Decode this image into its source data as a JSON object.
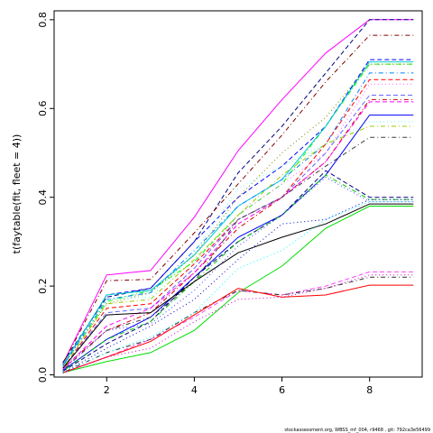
{
  "chart_data": {
    "type": "line",
    "title": "",
    "xlabel": "",
    "ylabel": "t(faytable(fit, fleet = 4))",
    "xlim": [
      0.8,
      9.2
    ],
    "ylim": [
      -0.005,
      0.82
    ],
    "x_ticks": [
      2,
      4,
      6,
      8
    ],
    "y_ticks": [
      0.0,
      0.2,
      0.4,
      0.6,
      0.8
    ],
    "y_tick_labels": [
      "0.0",
      "0.2",
      "0.4",
      "0.6",
      "0.8"
    ],
    "grid": false,
    "legend": "none",
    "x": [
      1,
      2,
      3,
      4,
      5,
      6,
      7,
      8,
      9
    ],
    "series": [
      {
        "color": "#ff00ff",
        "dash": "solid",
        "values": [
          0.025,
          0.225,
          0.235,
          0.355,
          0.505,
          0.62,
          0.725,
          0.8,
          0.8
        ]
      },
      {
        "color": "#000080",
        "dash": "dashed",
        "values": [
          0.028,
          0.175,
          0.195,
          0.3,
          0.455,
          0.56,
          0.68,
          0.8,
          0.8
        ]
      },
      {
        "color": "#800000",
        "dash": "dotdash",
        "values": [
          0.025,
          0.212,
          0.215,
          0.32,
          0.43,
          0.54,
          0.66,
          0.765,
          0.765
        ]
      },
      {
        "color": "#0000ff",
        "dash": "dashed",
        "values": [
          0.02,
          0.18,
          0.195,
          0.3,
          0.4,
          0.47,
          0.56,
          0.71,
          0.71
        ]
      },
      {
        "color": "#00ff00",
        "dash": "dotdash",
        "values": [
          0.02,
          0.165,
          0.19,
          0.255,
          0.36,
          0.43,
          0.56,
          0.7,
          0.7
        ]
      },
      {
        "color": "#00cccc",
        "dash": "solid",
        "values": [
          0.022,
          0.18,
          0.19,
          0.27,
          0.38,
          0.44,
          0.56,
          0.705,
          0.705
        ]
      },
      {
        "color": "#808000",
        "dash": "dotted",
        "values": [
          0.02,
          0.16,
          0.185,
          0.27,
          0.4,
          0.5,
          0.58,
          0.7,
          0.7
        ]
      },
      {
        "color": "#0080ff",
        "dash": "dotdash",
        "values": [
          0.02,
          0.17,
          0.185,
          0.28,
          0.38,
          0.44,
          0.52,
          0.68,
          0.68
        ]
      },
      {
        "color": "#ff0000",
        "dash": "dashed",
        "values": [
          0.015,
          0.15,
          0.16,
          0.25,
          0.35,
          0.4,
          0.52,
          0.665,
          0.665
        ]
      },
      {
        "color": "#ff66ff",
        "dash": "dotted",
        "values": [
          0.018,
          0.1,
          0.14,
          0.24,
          0.36,
          0.43,
          0.5,
          0.655,
          0.655
        ]
      },
      {
        "color": "#6666ff",
        "dash": "dashed",
        "values": [
          0.015,
          0.14,
          0.15,
          0.24,
          0.35,
          0.4,
          0.5,
          0.63,
          0.63
        ]
      },
      {
        "color": "#cc0000",
        "dash": "dotdash",
        "values": [
          0.015,
          0.1,
          0.14,
          0.23,
          0.33,
          0.4,
          0.48,
          0.62,
          0.62
        ]
      },
      {
        "color": "#ff00ff",
        "dash": "dashed",
        "values": [
          0.012,
          0.11,
          0.15,
          0.23,
          0.34,
          0.4,
          0.48,
          0.615,
          0.615
        ]
      },
      {
        "color": "#0000ff",
        "dash": "solid",
        "values": [
          0.01,
          0.08,
          0.13,
          0.22,
          0.31,
          0.36,
          0.45,
          0.585,
          0.585
        ]
      },
      {
        "color": "#66ffff",
        "dash": "dotted",
        "values": [
          0.018,
          0.17,
          0.175,
          0.275,
          0.42,
          0.47,
          0.52,
          0.57,
          0.57
        ]
      },
      {
        "color": "#99cc00",
        "dash": "dotdash",
        "values": [
          0.015,
          0.16,
          0.17,
          0.26,
          0.36,
          0.45,
          0.52,
          0.56,
          0.56
        ]
      },
      {
        "color": "#404040",
        "dash": "dotdash",
        "values": [
          0.01,
          0.1,
          0.13,
          0.21,
          0.35,
          0.4,
          0.47,
          0.535,
          0.535
        ]
      },
      {
        "color": "#000080",
        "dash": "dashed",
        "values": [
          0.008,
          0.07,
          0.12,
          0.22,
          0.3,
          0.36,
          0.46,
          0.4,
          0.4
        ]
      },
      {
        "color": "#00cc00",
        "dash": "dotdash",
        "values": [
          0.008,
          0.08,
          0.12,
          0.21,
          0.3,
          0.36,
          0.45,
          0.395,
          0.395
        ]
      },
      {
        "color": "#000000",
        "dash": "solid",
        "values": [
          0.015,
          0.135,
          0.14,
          0.21,
          0.275,
          0.31,
          0.34,
          0.385,
          0.385
        ]
      },
      {
        "color": "#00dd00",
        "dash": "solid",
        "values": [
          0.005,
          0.03,
          0.05,
          0.1,
          0.185,
          0.245,
          0.33,
          0.38,
          0.38
        ]
      },
      {
        "color": "#4040ff",
        "dash": "dotted",
        "values": [
          0.01,
          0.1,
          0.115,
          0.19,
          0.29,
          0.36,
          0.445,
          0.39,
          0.39
        ]
      },
      {
        "color": "#ff44ff",
        "dash": "dashed",
        "values": [
          0.005,
          0.04,
          0.08,
          0.13,
          0.19,
          0.18,
          0.2,
          0.232,
          0.232
        ]
      },
      {
        "color": "#303030",
        "dash": "dotdash",
        "values": [
          0.005,
          0.05,
          0.08,
          0.14,
          0.19,
          0.18,
          0.195,
          0.22,
          0.22
        ]
      },
      {
        "color": "#ff0000",
        "dash": "solid",
        "values": [
          0.005,
          0.04,
          0.075,
          0.135,
          0.195,
          0.175,
          0.18,
          0.202,
          0.202
        ]
      },
      {
        "color": "#cc00cc",
        "dash": "dotted",
        "values": [
          0.004,
          0.04,
          0.06,
          0.12,
          0.17,
          0.175,
          0.195,
          0.225,
          0.225
        ]
      },
      {
        "color": "#0000cc",
        "dash": "dotted",
        "values": [
          0.005,
          0.06,
          0.11,
          0.17,
          0.26,
          0.34,
          0.35,
          0.395,
          0.395
        ]
      },
      {
        "color": "#00ffff",
        "dash": "dotted",
        "values": [
          0.006,
          0.05,
          0.085,
          0.14,
          0.24,
          0.28,
          0.35,
          0.39,
          0.39
        ]
      }
    ]
  },
  "footer": {
    "text": "stockassessment.org, WBSS_mf_004, r9468 , git: 792ca3e56499"
  }
}
